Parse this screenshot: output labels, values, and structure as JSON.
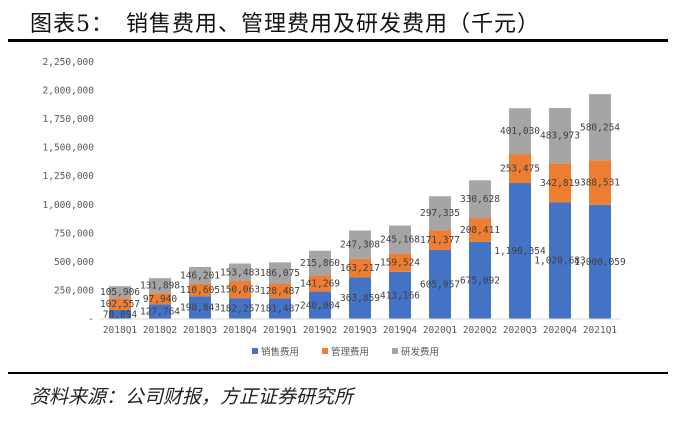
{
  "title": "图表5：　销售费用、管理费用及研发费用（千元）",
  "source": "资料来源：公司财报，方正证券研究所",
  "chart_data": {
    "type": "bar",
    "stacked": true,
    "categories": [
      "2018Q1",
      "2018Q2",
      "2018Q3",
      "2018Q4",
      "2019Q1",
      "2019Q2",
      "2019Q3",
      "2019Q4",
      "2020Q1",
      "2020Q2",
      "2020Q3",
      "2020Q4",
      "2021Q1"
    ],
    "series": [
      {
        "name": "销售费用",
        "color": "#4472C4",
        "values": [
          78894,
          127764,
          198843,
          182257,
          181487,
          240004,
          363859,
          413166,
          605957,
          675092,
          1190354,
          1020683,
          1000059
        ],
        "labels": [
          "78,894",
          "127,764",
          "198,843",
          "182,257",
          "181,487",
          "240,004",
          "363,859",
          "413,166",
          "605,957",
          "675,092",
          "1,190,354",
          "1,020,683",
          "1,000,059"
        ]
      },
      {
        "name": "管理费用",
        "color": "#ED7D31",
        "values": [
          102557,
          97940,
          110605,
          150063,
          128487,
          141269,
          163217,
          159524,
          171377,
          208411,
          253475,
          342819,
          388531
        ],
        "labels": [
          "102,557",
          "97,940",
          "110,605",
          "150,063",
          "128,487",
          "141,269",
          "163,217",
          "159,524",
          "171,377",
          "208,411",
          "253,475",
          "342,819",
          "388,531"
        ]
      },
      {
        "name": "研发费用",
        "color": "#A5A5A5",
        "values": [
          105906,
          131898,
          146201,
          153483,
          186075,
          215860,
          247308,
          245168,
          297335,
          330628,
          401030,
          483973,
          580254
        ],
        "labels": [
          "105,906",
          "131,898",
          "146,201",
          "153,483",
          "186,075",
          "215,860",
          "247,308",
          "245,168",
          "297,335",
          "330,628",
          "401,030",
          "483,973",
          "580,254"
        ]
      }
    ],
    "ylim": [
      0,
      2250000
    ],
    "yticks": [
      0,
      250000,
      500000,
      750000,
      1000000,
      1250000,
      1500000,
      1750000,
      2000000,
      2250000
    ],
    "ytick_labels": [
      "-",
      "250,000",
      "500,000",
      "750,000",
      "1,000,000",
      "1,250,000",
      "1,500,000",
      "1,750,000",
      "2,000,000",
      "2,250,000"
    ],
    "legend_position": "bottom",
    "grid": false
  }
}
